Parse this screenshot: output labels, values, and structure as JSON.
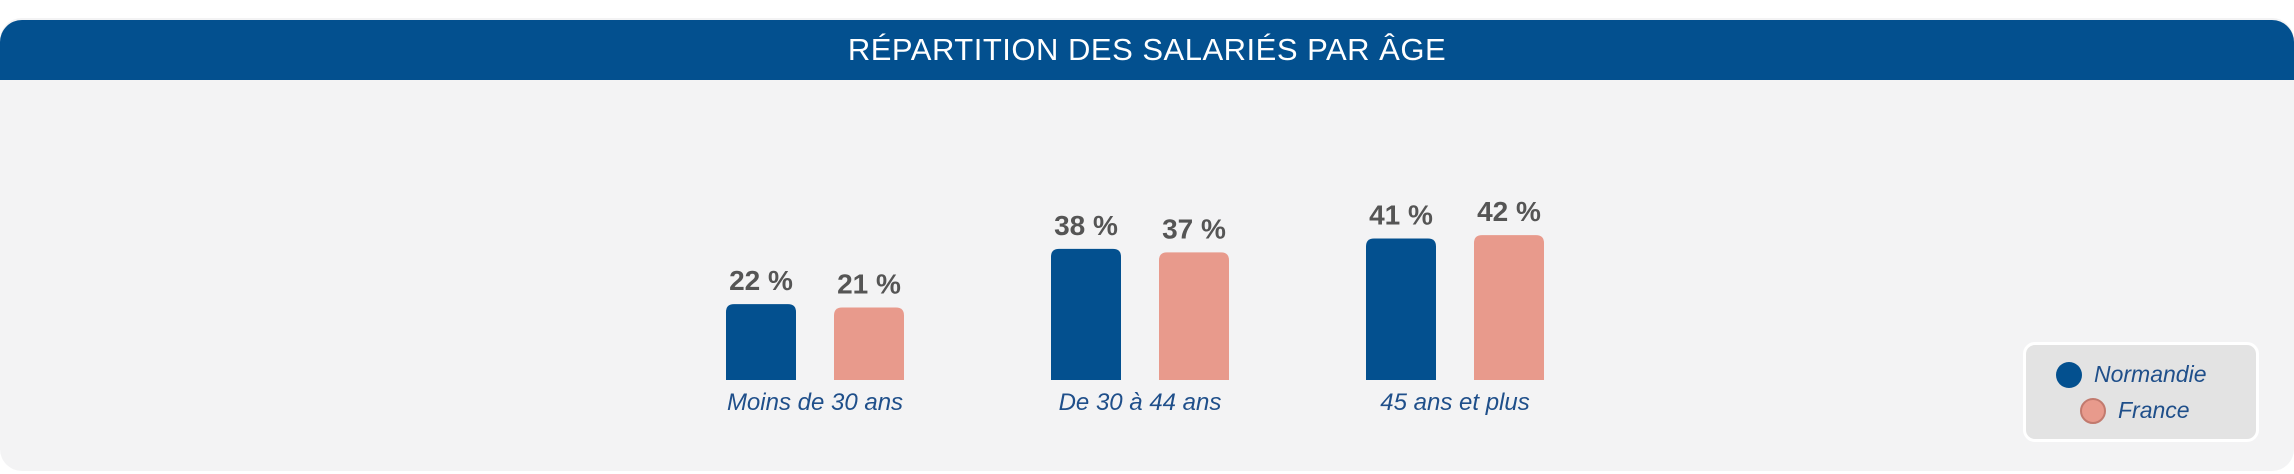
{
  "chart_data": {
    "type": "bar",
    "title": "RÉPARTITION DES SALARIÉS PAR ÂGE",
    "categories": [
      "Moins de 30 ans",
      "De 30 à 44 ans",
      "45 ans et plus"
    ],
    "series": [
      {
        "name": "Normandie",
        "values": [
          22,
          38,
          41
        ],
        "labels": [
          "22 %",
          "38 %",
          "41 %"
        ],
        "color": "#03508f"
      },
      {
        "name": "France",
        "values": [
          21,
          37,
          42
        ],
        "labels": [
          "21 %",
          "37 %",
          "42 %"
        ],
        "color": "#e89a8c"
      }
    ],
    "ylim": [
      0,
      42
    ],
    "grid": false,
    "legend_position": "bottom-right"
  },
  "colors": {
    "title_bar": "#03508f",
    "background": "#f3f3f4",
    "value_text": "#555555",
    "category_text": "#1f4f8a"
  }
}
